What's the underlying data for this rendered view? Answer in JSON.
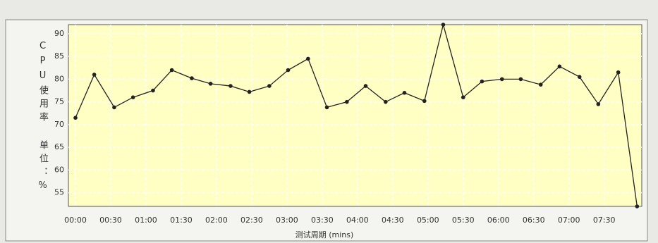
{
  "chart_data": {
    "type": "line",
    "ylabel": "CPU使用率 单位：%",
    "xlabel": "测试周期 (mins)",
    "x": [
      0,
      16,
      33,
      49,
      66,
      82,
      99,
      115,
      132,
      148,
      165,
      181,
      198,
      214,
      231,
      247,
      264,
      280,
      297,
      313,
      330,
      346,
      363,
      379,
      396,
      412,
      429,
      445,
      462,
      478
    ],
    "series": [
      {
        "color": "#222222",
        "values": [
          71.5,
          81,
          73.8,
          76,
          77.5,
          82,
          80.2,
          79,
          78.5,
          77.2,
          78.5,
          82,
          84.5,
          73.8,
          75,
          78.5,
          75,
          77,
          75.2,
          92,
          76,
          79.5,
          80,
          80,
          78.8,
          82.8,
          80.5,
          74.5,
          81.5,
          52
        ]
      }
    ],
    "xlim": [
      -6,
      482
    ],
    "xticks": [
      {
        "value": 0,
        "label": "00:00"
      },
      {
        "value": 30,
        "label": "00:30"
      },
      {
        "value": 60,
        "label": "01:00"
      },
      {
        "value": 90,
        "label": "01:30"
      },
      {
        "value": 120,
        "label": "02:00"
      },
      {
        "value": 150,
        "label": "02:30"
      },
      {
        "value": 180,
        "label": "03:00"
      },
      {
        "value": 210,
        "label": "03:30"
      },
      {
        "value": 240,
        "label": "04:00"
      },
      {
        "value": 270,
        "label": "04:30"
      },
      {
        "value": 300,
        "label": "05:00"
      },
      {
        "value": 330,
        "label": "05:30"
      },
      {
        "value": 360,
        "label": "06:00"
      },
      {
        "value": 390,
        "label": "06:30"
      },
      {
        "value": 420,
        "label": "07:00"
      },
      {
        "value": 450,
        "label": "07:30"
      }
    ],
    "ylim": [
      52,
      92
    ],
    "yticks": [
      55,
      60,
      65,
      70,
      75,
      80,
      85,
      90
    ],
    "grid": true
  }
}
